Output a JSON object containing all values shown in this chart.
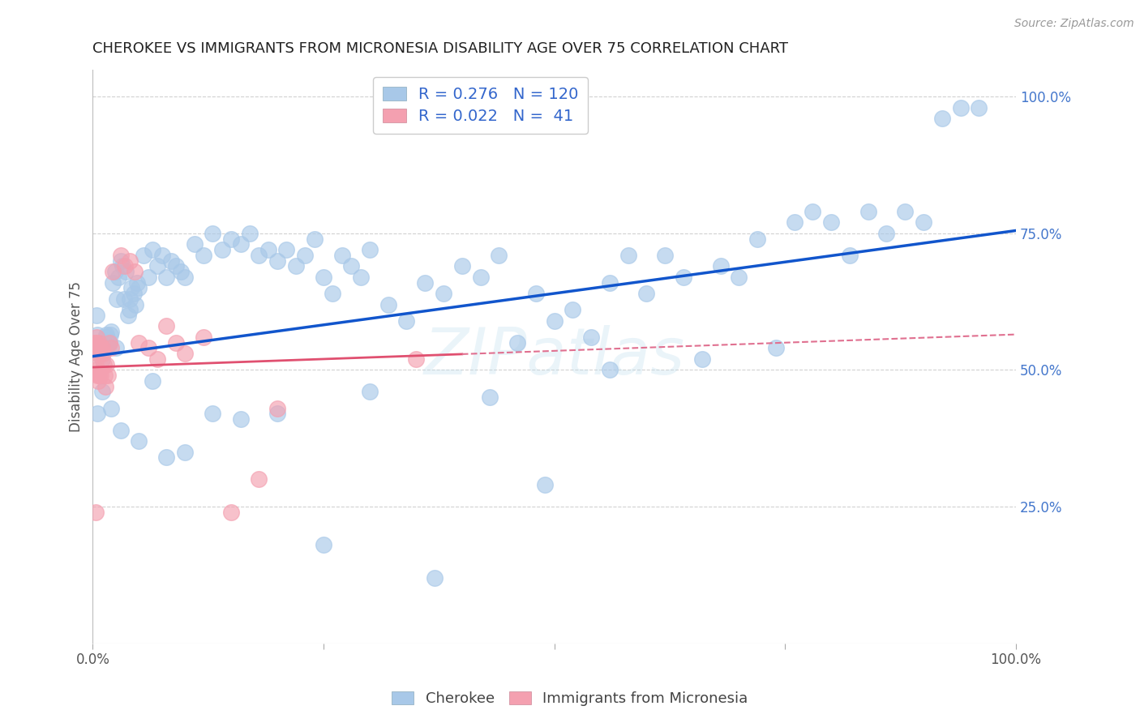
{
  "title": "CHEROKEE VS IMMIGRANTS FROM MICRONESIA DISABILITY AGE OVER 75 CORRELATION CHART",
  "source": "Source: ZipAtlas.com",
  "ylabel": "Disability Age Over 75",
  "right_yticks": [
    "25.0%",
    "50.0%",
    "75.0%",
    "100.0%"
  ],
  "right_ytick_vals": [
    0.25,
    0.5,
    0.75,
    1.0
  ],
  "legend_label1": "Cherokee",
  "legend_label2": "Immigrants from Micronesia",
  "color_blue": "#A8C8E8",
  "color_pink": "#F4A0B0",
  "color_blue_line": "#1155CC",
  "color_pink_line": "#E05070",
  "color_pink_dashed": "#E07090",
  "background": "#FFFFFF",
  "grid_color": "#CCCCCC",
  "R_blue": 0.276,
  "R_pink": 0.022,
  "N_blue": 120,
  "N_pink": 41,
  "blue_line_y0": 0.525,
  "blue_line_y1": 0.755,
  "pink_line_y0": 0.505,
  "pink_line_y1": 0.565,
  "xlim": [
    0.0,
    1.0
  ],
  "ylim": [
    0.0,
    1.05
  ],
  "blue_x": [
    0.003,
    0.004,
    0.005,
    0.006,
    0.007,
    0.008,
    0.009,
    0.01,
    0.011,
    0.012,
    0.013,
    0.014,
    0.015,
    0.016,
    0.017,
    0.018,
    0.019,
    0.02,
    0.022,
    0.024,
    0.026,
    0.028,
    0.03,
    0.032,
    0.034,
    0.036,
    0.038,
    0.04,
    0.042,
    0.044,
    0.046,
    0.048,
    0.05,
    0.055,
    0.06,
    0.065,
    0.07,
    0.075,
    0.08,
    0.085,
    0.09,
    0.095,
    0.1,
    0.11,
    0.12,
    0.13,
    0.14,
    0.15,
    0.16,
    0.17,
    0.18,
    0.19,
    0.2,
    0.21,
    0.22,
    0.23,
    0.24,
    0.25,
    0.26,
    0.27,
    0.28,
    0.29,
    0.3,
    0.32,
    0.34,
    0.36,
    0.38,
    0.4,
    0.42,
    0.44,
    0.46,
    0.48,
    0.5,
    0.52,
    0.54,
    0.56,
    0.58,
    0.6,
    0.62,
    0.64,
    0.66,
    0.68,
    0.7,
    0.72,
    0.74,
    0.76,
    0.78,
    0.8,
    0.82,
    0.84,
    0.86,
    0.88,
    0.9,
    0.92,
    0.94,
    0.96,
    0.005,
    0.01,
    0.015,
    0.02,
    0.025,
    0.03,
    0.04,
    0.05,
    0.065,
    0.08,
    0.1,
    0.13,
    0.16,
    0.2,
    0.25,
    0.3,
    0.37,
    0.43,
    0.49,
    0.56,
    0.005,
    0.015
  ],
  "blue_y": [
    0.545,
    0.6,
    0.545,
    0.545,
    0.545,
    0.545,
    0.545,
    0.52,
    0.545,
    0.545,
    0.545,
    0.545,
    0.545,
    0.555,
    0.545,
    0.55,
    0.565,
    0.57,
    0.66,
    0.68,
    0.63,
    0.67,
    0.7,
    0.69,
    0.63,
    0.68,
    0.6,
    0.63,
    0.65,
    0.64,
    0.62,
    0.66,
    0.65,
    0.71,
    0.67,
    0.72,
    0.69,
    0.71,
    0.67,
    0.7,
    0.69,
    0.68,
    0.67,
    0.73,
    0.71,
    0.75,
    0.72,
    0.74,
    0.73,
    0.75,
    0.71,
    0.72,
    0.7,
    0.72,
    0.69,
    0.71,
    0.74,
    0.67,
    0.64,
    0.71,
    0.69,
    0.67,
    0.72,
    0.62,
    0.59,
    0.66,
    0.64,
    0.69,
    0.67,
    0.71,
    0.55,
    0.64,
    0.59,
    0.61,
    0.56,
    0.66,
    0.71,
    0.64,
    0.71,
    0.67,
    0.52,
    0.69,
    0.67,
    0.74,
    0.54,
    0.77,
    0.79,
    0.77,
    0.71,
    0.79,
    0.75,
    0.79,
    0.77,
    0.96,
    0.98,
    0.98,
    0.42,
    0.46,
    0.56,
    0.43,
    0.54,
    0.39,
    0.61,
    0.37,
    0.48,
    0.34,
    0.35,
    0.42,
    0.41,
    0.42,
    0.18,
    0.46,
    0.12,
    0.45,
    0.29,
    0.5,
    0.565,
    0.565
  ],
  "pink_x": [
    0.001,
    0.002,
    0.003,
    0.003,
    0.004,
    0.004,
    0.005,
    0.005,
    0.006,
    0.006,
    0.007,
    0.007,
    0.008,
    0.008,
    0.009,
    0.01,
    0.011,
    0.012,
    0.013,
    0.014,
    0.015,
    0.016,
    0.018,
    0.02,
    0.022,
    0.03,
    0.035,
    0.04,
    0.045,
    0.05,
    0.06,
    0.07,
    0.08,
    0.09,
    0.1,
    0.12,
    0.15,
    0.18,
    0.2,
    0.35,
    0.003
  ],
  "pink_y": [
    0.54,
    0.55,
    0.55,
    0.51,
    0.56,
    0.5,
    0.53,
    0.49,
    0.54,
    0.48,
    0.55,
    0.49,
    0.53,
    0.49,
    0.54,
    0.54,
    0.53,
    0.51,
    0.49,
    0.47,
    0.51,
    0.49,
    0.55,
    0.54,
    0.68,
    0.71,
    0.69,
    0.7,
    0.68,
    0.55,
    0.54,
    0.52,
    0.58,
    0.55,
    0.53,
    0.56,
    0.24,
    0.3,
    0.43,
    0.52,
    0.24
  ]
}
